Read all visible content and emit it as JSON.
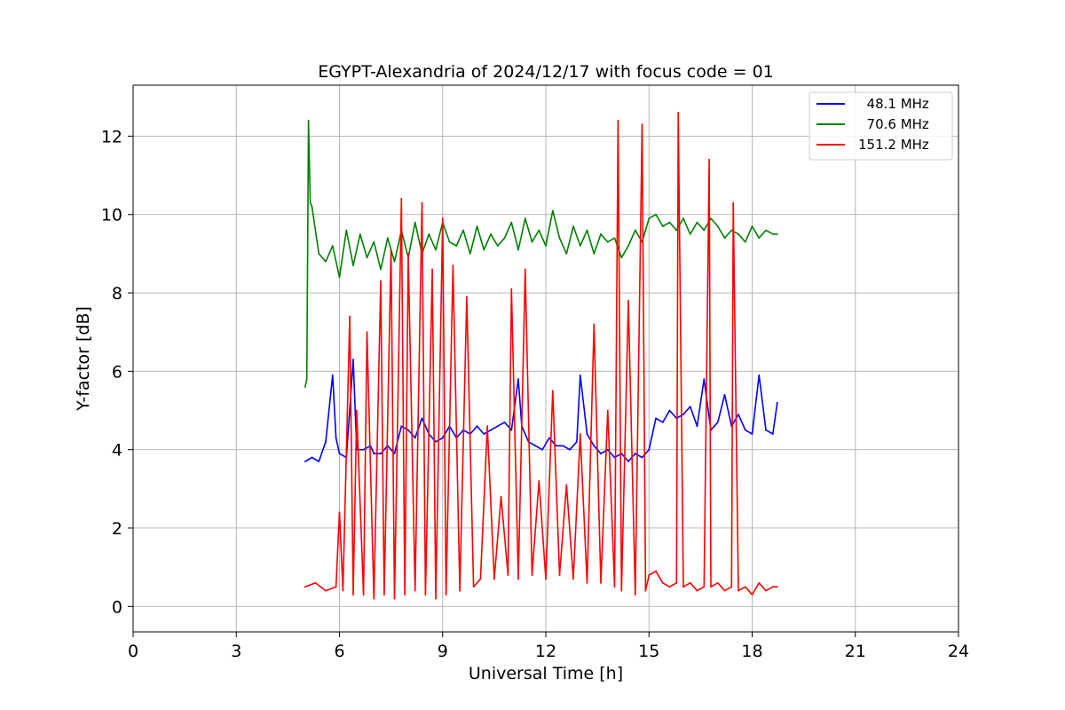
{
  "chart_data": {
    "type": "line",
    "title": "EGYPT-Alexandria of 2024/12/17 with focus code = 01",
    "xlabel": "Universal Time [h]",
    "ylabel": "Y-factor [dB]",
    "xlim": [
      0,
      24
    ],
    "ylim": [
      -0.65,
      13.3
    ],
    "xticks": [
      0,
      3,
      6,
      9,
      12,
      15,
      18,
      21,
      24
    ],
    "yticks": [
      0,
      2,
      4,
      6,
      8,
      10,
      12
    ],
    "grid": true,
    "legend_position": "top-right",
    "series": [
      {
        "name": "  48.1 MHz",
        "color": "#0000ff",
        "x": [
          5.0,
          5.2,
          5.4,
          5.6,
          5.8,
          5.9,
          6.0,
          6.2,
          6.4,
          6.5,
          6.7,
          6.9,
          7.0,
          7.2,
          7.4,
          7.6,
          7.8,
          8.0,
          8.2,
          8.4,
          8.6,
          8.8,
          9.0,
          9.2,
          9.4,
          9.6,
          9.8,
          10.0,
          10.2,
          10.4,
          10.6,
          10.8,
          11.0,
          11.2,
          11.3,
          11.5,
          11.7,
          11.9,
          12.1,
          12.3,
          12.5,
          12.7,
          12.9,
          13.0,
          13.2,
          13.4,
          13.6,
          13.8,
          14.0,
          14.2,
          14.4,
          14.6,
          14.8,
          15.0,
          15.2,
          15.4,
          15.6,
          15.8,
          16.0,
          16.2,
          16.4,
          16.6,
          16.8,
          17.0,
          17.2,
          17.4,
          17.6,
          17.8,
          18.0,
          18.2,
          18.4,
          18.6,
          18.73
        ],
        "y": [
          3.7,
          3.8,
          3.7,
          4.2,
          5.9,
          4.3,
          3.9,
          3.8,
          6.3,
          4.0,
          4.0,
          4.1,
          3.9,
          3.9,
          4.1,
          3.9,
          4.6,
          4.5,
          4.3,
          4.8,
          4.4,
          4.2,
          4.3,
          4.6,
          4.3,
          4.5,
          4.4,
          4.6,
          4.4,
          4.5,
          4.6,
          4.7,
          4.5,
          5.8,
          4.6,
          4.2,
          4.1,
          4.0,
          4.3,
          4.1,
          4.1,
          4.0,
          4.2,
          5.9,
          4.4,
          4.1,
          3.9,
          4.0,
          3.8,
          3.9,
          3.7,
          3.9,
          3.8,
          4.0,
          4.8,
          4.7,
          5.0,
          4.8,
          4.9,
          5.1,
          4.6,
          5.8,
          4.5,
          4.7,
          5.4,
          4.6,
          4.9,
          4.5,
          4.4,
          5.9,
          4.5,
          4.4,
          5.2
        ]
      },
      {
        "name": "  70.6 MHz",
        "color": "#008000",
        "x": [
          5.0,
          5.05,
          5.1,
          5.15,
          5.2,
          5.4,
          5.6,
          5.8,
          6.0,
          6.2,
          6.4,
          6.6,
          6.8,
          7.0,
          7.2,
          7.4,
          7.6,
          7.8,
          8.0,
          8.2,
          8.4,
          8.6,
          8.8,
          9.0,
          9.2,
          9.4,
          9.6,
          9.8,
          10.0,
          10.2,
          10.4,
          10.6,
          10.8,
          11.0,
          11.2,
          11.4,
          11.6,
          11.8,
          12.0,
          12.2,
          12.4,
          12.6,
          12.8,
          13.0,
          13.2,
          13.4,
          13.6,
          13.8,
          14.0,
          14.2,
          14.4,
          14.6,
          14.8,
          15.0,
          15.2,
          15.4,
          15.6,
          15.8,
          16.0,
          16.2,
          16.4,
          16.6,
          16.8,
          17.0,
          17.2,
          17.4,
          17.6,
          17.8,
          18.0,
          18.2,
          18.4,
          18.6,
          18.73
        ],
        "y": [
          5.6,
          5.8,
          12.4,
          10.3,
          10.2,
          9.0,
          8.8,
          9.2,
          8.4,
          9.6,
          8.7,
          9.5,
          8.9,
          9.3,
          8.6,
          9.4,
          8.8,
          9.6,
          8.9,
          9.8,
          9.0,
          9.5,
          9.1,
          9.8,
          9.3,
          9.2,
          9.6,
          9.0,
          9.7,
          9.1,
          9.5,
          9.2,
          9.4,
          9.8,
          9.1,
          9.9,
          9.3,
          9.6,
          9.2,
          10.1,
          9.4,
          9.0,
          9.7,
          9.2,
          9.6,
          9.0,
          9.5,
          9.3,
          9.4,
          8.9,
          9.2,
          9.6,
          9.3,
          9.9,
          10.0,
          9.7,
          9.8,
          9.6,
          9.9,
          9.5,
          9.8,
          9.6,
          9.9,
          9.7,
          9.4,
          9.6,
          9.5,
          9.3,
          9.7,
          9.4,
          9.6,
          9.5,
          9.5
        ]
      },
      {
        "name": "151.2 MHz",
        "color": "#ff0000",
        "x": [
          5.0,
          5.3,
          5.6,
          5.9,
          6.0,
          6.1,
          6.3,
          6.4,
          6.5,
          6.7,
          6.8,
          7.0,
          7.2,
          7.3,
          7.5,
          7.6,
          7.8,
          7.9,
          8.0,
          8.2,
          8.4,
          8.5,
          8.7,
          8.8,
          9.0,
          9.1,
          9.3,
          9.5,
          9.7,
          9.9,
          10.1,
          10.3,
          10.5,
          10.7,
          10.9,
          11.0,
          11.2,
          11.4,
          11.6,
          11.8,
          12.0,
          12.2,
          12.4,
          12.6,
          12.8,
          13.0,
          13.2,
          13.4,
          13.6,
          13.8,
          14.0,
          14.1,
          14.2,
          14.4,
          14.6,
          14.8,
          14.9,
          15.0,
          15.2,
          15.4,
          15.6,
          15.8,
          15.85,
          16.0,
          16.2,
          16.4,
          16.6,
          16.75,
          16.8,
          17.0,
          17.2,
          17.4,
          17.45,
          17.6,
          17.8,
          18.0,
          18.2,
          18.4,
          18.6,
          18.73
        ],
        "y": [
          0.5,
          0.6,
          0.4,
          0.5,
          2.4,
          0.4,
          7.4,
          0.3,
          5.0,
          0.3,
          7.0,
          0.2,
          8.3,
          0.3,
          9.1,
          0.2,
          10.4,
          0.3,
          9.0,
          0.4,
          10.3,
          0.3,
          8.6,
          0.2,
          9.9,
          0.3,
          8.7,
          0.4,
          7.9,
          0.5,
          0.7,
          4.6,
          0.7,
          2.8,
          0.8,
          8.1,
          0.7,
          8.6,
          0.8,
          3.2,
          0.7,
          5.5,
          0.8,
          3.1,
          0.7,
          4.4,
          0.6,
          7.2,
          0.6,
          5.0,
          0.5,
          12.4,
          0.4,
          7.8,
          0.3,
          12.3,
          0.4,
          0.8,
          0.9,
          0.6,
          0.5,
          0.6,
          12.6,
          0.5,
          0.6,
          0.4,
          0.5,
          11.4,
          0.5,
          0.6,
          0.4,
          0.5,
          10.3,
          0.4,
          0.5,
          0.3,
          0.6,
          0.4,
          0.5,
          0.5
        ]
      }
    ]
  }
}
